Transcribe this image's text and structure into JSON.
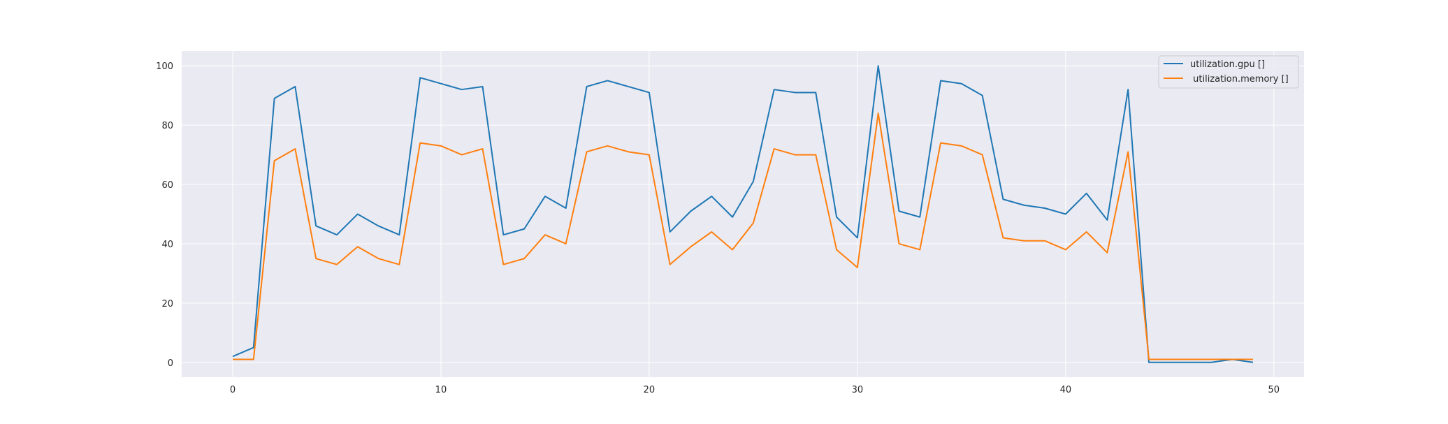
{
  "chart_data": {
    "type": "line",
    "title": "",
    "xlabel": "",
    "ylabel": "",
    "xlim": [
      -2.45,
      51.45
    ],
    "ylim": [
      -5,
      105
    ],
    "xticks": [
      0,
      10,
      20,
      30,
      40,
      50
    ],
    "yticks": [
      0,
      20,
      40,
      60,
      80,
      100
    ],
    "grid": true,
    "legend_position": "top-right",
    "x": [
      0,
      1,
      2,
      3,
      4,
      5,
      6,
      7,
      8,
      9,
      10,
      11,
      12,
      13,
      14,
      15,
      16,
      17,
      18,
      19,
      20,
      21,
      22,
      23,
      24,
      25,
      26,
      27,
      28,
      29,
      30,
      31,
      32,
      33,
      34,
      35,
      36,
      37,
      38,
      39,
      40,
      41,
      42,
      43,
      44,
      45,
      46,
      47,
      48,
      49
    ],
    "series": [
      {
        "name": "utilization.gpu []",
        "color": "#1f77b4",
        "values": [
          2,
          5,
          89,
          93,
          46,
          43,
          50,
          46,
          43,
          96,
          94,
          92,
          93,
          43,
          45,
          56,
          52,
          93,
          95,
          93,
          91,
          44,
          51,
          56,
          49,
          61,
          92,
          91,
          91,
          49,
          42,
          100,
          51,
          49,
          95,
          94,
          90,
          55,
          53,
          52,
          50,
          57,
          48,
          92,
          0,
          0,
          0,
          0,
          1,
          0
        ]
      },
      {
        "name": " utilization.memory []",
        "color": "#ff7f0e",
        "values": [
          1,
          1,
          68,
          72,
          35,
          33,
          39,
          35,
          33,
          74,
          73,
          70,
          72,
          33,
          35,
          43,
          40,
          71,
          73,
          71,
          70,
          33,
          39,
          44,
          38,
          47,
          72,
          70,
          70,
          38,
          32,
          84,
          40,
          38,
          74,
          73,
          70,
          42,
          41,
          41,
          38,
          44,
          37,
          71,
          1,
          1,
          1,
          1,
          1,
          1
        ]
      }
    ]
  }
}
